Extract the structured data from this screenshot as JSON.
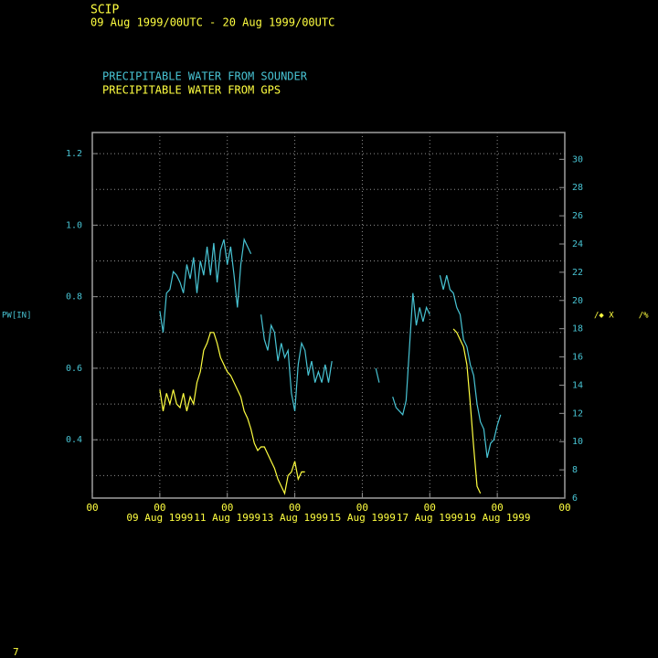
{
  "chart_data": {
    "type": "line",
    "title": "SCIP",
    "subtitle": "09 Aug 1999/00UTC - 20 Aug 1999/00UTC",
    "ylabel": "PW[IN]",
    "y2label": "/◆ X     /%",
    "footer": "7",
    "xlim": [
      7,
      21
    ],
    "xticks": [
      {
        "value": 7,
        "label": "00"
      },
      {
        "value": 9,
        "label": "00"
      },
      {
        "value": 11,
        "label": "00"
      },
      {
        "value": 13,
        "label": "00"
      },
      {
        "value": 15,
        "label": "00"
      },
      {
        "value": 17,
        "label": "00"
      },
      {
        "value": 19,
        "label": "00"
      },
      {
        "value": 21,
        "label": "00"
      }
    ],
    "xtick_dates": [
      {
        "value": 9,
        "label": "09 Aug 1999"
      },
      {
        "value": 11,
        "label": "11 Aug 1999"
      },
      {
        "value": 13,
        "label": "13 Aug 1999"
      },
      {
        "value": 15,
        "label": "15 Aug 1999"
      },
      {
        "value": 17,
        "label": "17 Aug 1999"
      },
      {
        "value": 19,
        "label": "19 Aug 1999"
      }
    ],
    "ylim": [
      0.237,
      1.259
    ],
    "yticks": [
      0.4,
      0.6,
      0.8,
      {
        "value": 1,
        "label": "1.0"
      },
      1.2
    ],
    "yminor": [
      0.3,
      0.5,
      0.7,
      0.9,
      1.1
    ],
    "y2lim": [
      6,
      31.9
    ],
    "y2ticks": [
      6,
      8,
      10,
      12,
      14,
      16,
      18,
      20,
      22,
      24,
      26,
      28,
      30
    ],
    "grid": true,
    "series": [
      {
        "name": "PRECIPITABLE WATER FROM SOUNDER",
        "color": "#48c4d4",
        "x": [
          9.0,
          9.1,
          9.2,
          9.3,
          9.4,
          9.5,
          9.6,
          9.7,
          9.8,
          9.9,
          10.0,
          10.1,
          10.2,
          10.3,
          10.4,
          10.5,
          10.6,
          10.7,
          10.8,
          10.9,
          11.0,
          11.1,
          11.2,
          11.3,
          11.4,
          11.5,
          11.6,
          11.7,
          11.85,
          12.0,
          12.1,
          12.2,
          12.3,
          12.4,
          12.5,
          12.6,
          12.7,
          12.8,
          12.9,
          13.0,
          13.1,
          13.2,
          13.3,
          13.4,
          13.5,
          13.6,
          13.7,
          13.8,
          13.9,
          14.0,
          14.1,
          14.7,
          15.4,
          15.5,
          15.7,
          15.9,
          16.0,
          16.1,
          16.2,
          16.3,
          16.4,
          16.5,
          16.6,
          16.7,
          16.8,
          16.9,
          17.0,
          17.15,
          17.3,
          17.4,
          17.5,
          17.6,
          17.7,
          17.8,
          17.9,
          18.0,
          18.1,
          18.2,
          18.3,
          18.4,
          18.5,
          18.6,
          18.7,
          18.8,
          18.9,
          19.0,
          19.1
        ],
        "values": [
          0.76,
          0.7,
          0.81,
          0.82,
          0.87,
          0.86,
          0.84,
          0.81,
          0.89,
          0.85,
          0.91,
          0.81,
          0.9,
          0.86,
          0.94,
          0.86,
          0.95,
          0.84,
          0.93,
          0.96,
          0.89,
          0.94,
          0.86,
          0.77,
          0.89,
          0.96,
          0.94,
          0.92,
          null,
          0.75,
          0.68,
          0.65,
          0.72,
          0.7,
          0.62,
          0.67,
          0.63,
          0.65,
          0.53,
          0.48,
          0.61,
          0.67,
          0.65,
          0.58,
          0.62,
          0.56,
          0.59,
          0.56,
          0.61,
          0.56,
          0.62,
          null,
          0.6,
          0.56,
          null,
          0.52,
          0.49,
          0.48,
          0.47,
          0.51,
          0.66,
          0.81,
          0.72,
          0.77,
          0.73,
          0.77,
          0.75,
          null,
          0.86,
          0.82,
          0.86,
          0.82,
          0.81,
          0.77,
          0.75,
          0.68,
          0.66,
          0.61,
          0.58,
          0.5,
          0.45,
          0.43,
          0.35,
          0.39,
          0.4,
          0.44,
          0.47
        ]
      },
      {
        "name": "PRECIPITABLE WATER FROM GPS",
        "color": "#ffff40",
        "x": [
          9.0,
          9.1,
          9.2,
          9.3,
          9.4,
          9.5,
          9.6,
          9.7,
          9.8,
          9.9,
          10.0,
          10.1,
          10.2,
          10.3,
          10.4,
          10.5,
          10.6,
          10.7,
          10.8,
          10.9,
          11.0,
          11.1,
          11.2,
          11.3,
          11.4,
          11.5,
          11.6,
          11.7,
          11.8,
          11.9,
          12.0,
          12.1,
          12.2,
          12.3,
          12.4,
          12.5,
          12.6,
          12.7,
          12.8,
          12.9,
          13.0,
          13.1,
          13.2,
          13.3,
          15.5,
          17.7,
          17.8,
          17.9,
          18.0,
          18.1,
          18.2,
          18.3,
          18.4,
          18.5
        ],
        "values": [
          0.54,
          0.48,
          0.53,
          0.5,
          0.54,
          0.5,
          0.49,
          0.53,
          0.48,
          0.52,
          0.5,
          0.56,
          0.59,
          0.65,
          0.67,
          0.7,
          0.7,
          0.67,
          0.63,
          0.61,
          0.59,
          0.58,
          0.56,
          0.54,
          0.52,
          0.48,
          0.46,
          0.43,
          0.39,
          0.37,
          0.38,
          0.38,
          0.36,
          0.34,
          0.32,
          0.29,
          0.27,
          0.25,
          0.3,
          0.31,
          0.34,
          0.29,
          0.31,
          0.31,
          null,
          0.71,
          0.7,
          0.68,
          0.66,
          0.61,
          0.5,
          0.38,
          0.27,
          0.25
        ]
      }
    ]
  }
}
